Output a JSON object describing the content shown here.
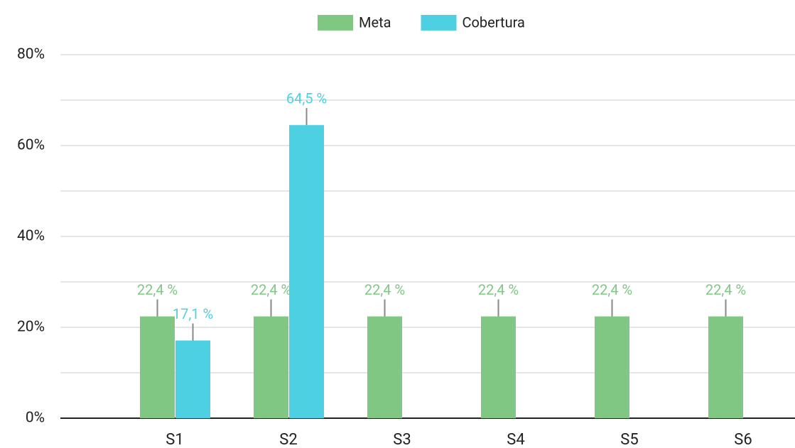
{
  "chart_data": {
    "type": "bar",
    "categories": [
      "S1",
      "S2",
      "S3",
      "S4",
      "S5",
      "S6"
    ],
    "series": [
      {
        "name": "Meta",
        "color": "#81c784",
        "values": [
          22.4,
          22.4,
          22.4,
          22.4,
          22.4,
          22.4
        ],
        "value_labels": [
          "22,4 %",
          "22,4 %",
          "22,4 %",
          "22,4 %",
          "22,4 %",
          "22,4 %"
        ]
      },
      {
        "name": "Cobertura",
        "color": "#4dd0e1",
        "values": [
          17.1,
          64.5,
          null,
          null,
          null,
          null
        ],
        "value_labels": [
          "17,1 %",
          "64,5 %",
          null,
          null,
          null,
          null
        ]
      }
    ],
    "ylim": [
      0,
      80
    ],
    "yticks": [
      {
        "value": 0,
        "label": "0%"
      },
      {
        "value": 20,
        "label": "20%"
      },
      {
        "value": 40,
        "label": "40%"
      },
      {
        "value": 60,
        "label": "60%"
      },
      {
        "value": 80,
        "label": "80%"
      }
    ],
    "minor_yticks": [
      10,
      30,
      50,
      70
    ],
    "grid": true,
    "legend": "top"
  }
}
